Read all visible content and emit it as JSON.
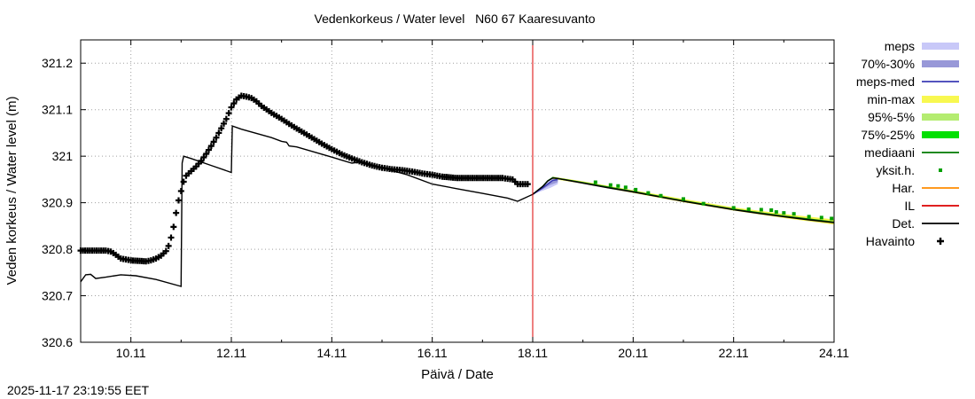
{
  "chart_data": {
    "type": "line",
    "title": "Vedenkorkeus / Water level   N60 67 Kaaresuvanto",
    "xlabel": "Päivä / Date",
    "ylabel": "Veden korkeus / Water level (m)",
    "timestamp": "2025-11-17 23:19:55 EET",
    "xlim": [
      9.0,
      24.0
    ],
    "ylim": [
      320.6,
      321.25
    ],
    "x_ticks": [
      {
        "value": 10,
        "label": "10.11"
      },
      {
        "value": 12,
        "label": "12.11"
      },
      {
        "value": 14,
        "label": "14.11"
      },
      {
        "value": 16,
        "label": "16.11"
      },
      {
        "value": 18,
        "label": "18.11"
      },
      {
        "value": 20,
        "label": "20.11"
      },
      {
        "value": 22,
        "label": "22.11"
      },
      {
        "value": 24,
        "label": "24.11"
      }
    ],
    "y_ticks": [
      {
        "value": 320.6,
        "label": "320.6"
      },
      {
        "value": 320.7,
        "label": "320.7"
      },
      {
        "value": 320.8,
        "label": "320.8"
      },
      {
        "value": 320.9,
        "label": "320.9"
      },
      {
        "value": 321.0,
        "label": "321"
      },
      {
        "value": 321.1,
        "label": "321.1"
      },
      {
        "value": 321.2,
        "label": "321.2"
      }
    ],
    "grid": true,
    "forecast_start": 18.0,
    "legend": [
      {
        "label": "meps",
        "type": "box",
        "color": "#c8c8f8"
      },
      {
        "label": "70%-30%",
        "type": "box",
        "color": "#9898d8"
      },
      {
        "label": "meps-med",
        "type": "line",
        "color": "#3c3cb4"
      },
      {
        "label": "min-max",
        "type": "box",
        "color": "#f8f850"
      },
      {
        "label": "95%-5%",
        "type": "box",
        "color": "#b4ec70"
      },
      {
        "label": "75%-25%",
        "type": "box",
        "color": "#00e000"
      },
      {
        "label": "mediaani",
        "type": "line",
        "color": "#007800"
      },
      {
        "label": "yksit.h.",
        "type": "dot",
        "color": "#00a000"
      },
      {
        "label": "Har.",
        "type": "line",
        "color": "#ff8c00"
      },
      {
        "label": "IL",
        "type": "line",
        "color": "#dc0000"
      },
      {
        "label": "Det.",
        "type": "line",
        "color": "#000000"
      },
      {
        "label": "Havainto",
        "type": "plus",
        "color": "#000000"
      }
    ],
    "series": [
      {
        "name": "Havainto",
        "style": "plus",
        "color": "#000000",
        "points": [
          [
            9.0,
            320.797
          ],
          [
            9.5,
            320.797
          ],
          [
            9.6,
            320.795
          ],
          [
            9.7,
            320.788
          ],
          [
            9.8,
            320.78
          ],
          [
            10.0,
            320.776
          ],
          [
            10.3,
            320.774
          ],
          [
            10.4,
            320.776
          ],
          [
            10.5,
            320.78
          ],
          [
            10.6,
            320.786
          ],
          [
            10.7,
            320.796
          ],
          [
            10.75,
            320.807
          ],
          [
            10.8,
            320.825
          ],
          [
            10.85,
            320.848
          ],
          [
            10.9,
            320.878
          ],
          [
            10.95,
            320.905
          ],
          [
            11.0,
            320.925
          ],
          [
            11.05,
            320.945
          ],
          [
            11.1,
            320.958
          ],
          [
            11.2,
            320.968
          ],
          [
            11.3,
            320.978
          ],
          [
            11.4,
            320.99
          ],
          [
            11.5,
            321.005
          ],
          [
            11.6,
            321.022
          ],
          [
            11.7,
            321.04
          ],
          [
            11.8,
            321.06
          ],
          [
            11.9,
            321.08
          ],
          [
            12.0,
            321.105
          ],
          [
            12.1,
            321.122
          ],
          [
            12.2,
            321.13
          ],
          [
            12.3,
            321.128
          ],
          [
            12.4,
            321.125
          ],
          [
            12.5,
            321.118
          ],
          [
            12.6,
            321.108
          ],
          [
            12.8,
            321.093
          ],
          [
            13.0,
            321.08
          ],
          [
            13.2,
            321.066
          ],
          [
            13.4,
            321.053
          ],
          [
            13.6,
            321.04
          ],
          [
            13.8,
            321.027
          ],
          [
            14.0,
            321.015
          ],
          [
            14.2,
            321.004
          ],
          [
            14.4,
            320.995
          ],
          [
            14.6,
            320.987
          ],
          [
            14.8,
            320.98
          ],
          [
            15.0,
            320.975
          ],
          [
            15.2,
            320.972
          ],
          [
            15.4,
            320.97
          ],
          [
            15.6,
            320.967
          ],
          [
            15.8,
            320.963
          ],
          [
            16.0,
            320.96
          ],
          [
            16.2,
            320.956
          ],
          [
            16.5,
            320.953
          ],
          [
            16.8,
            320.953
          ],
          [
            17.1,
            320.953
          ],
          [
            17.4,
            320.953
          ],
          [
            17.6,
            320.95
          ],
          [
            17.7,
            320.94
          ],
          [
            17.9,
            320.94
          ]
        ]
      },
      {
        "name": "Det.",
        "style": "line",
        "color": "#000000",
        "points": [
          [
            9.0,
            320.73
          ],
          [
            9.1,
            320.745
          ],
          [
            9.2,
            320.746
          ],
          [
            9.3,
            320.737
          ],
          [
            9.5,
            320.74
          ],
          [
            9.8,
            320.745
          ],
          [
            10.1,
            320.743
          ],
          [
            10.5,
            320.735
          ],
          [
            11.0,
            320.72
          ],
          [
            11.0,
            320.722
          ],
          [
            11.02,
            320.985
          ],
          [
            11.05,
            321.0
          ],
          [
            11.2,
            320.995
          ],
          [
            11.6,
            320.98
          ],
          [
            12.0,
            320.965
          ],
          [
            12.02,
            321.065
          ],
          [
            12.2,
            321.058
          ],
          [
            12.8,
            321.04
          ],
          [
            13.0,
            321.032
          ],
          [
            13.1,
            321.03
          ],
          [
            13.15,
            321.022
          ],
          [
            13.3,
            321.02
          ],
          [
            14.0,
            320.998
          ],
          [
            14.4,
            320.985
          ],
          [
            14.6,
            320.988
          ],
          [
            15.0,
            320.975
          ],
          [
            15.5,
            320.96
          ],
          [
            16.0,
            320.94
          ],
          [
            16.5,
            320.93
          ],
          [
            17.0,
            320.92
          ],
          [
            17.5,
            320.91
          ],
          [
            17.7,
            320.903
          ],
          [
            17.8,
            320.908
          ],
          [
            18.0,
            320.918
          ],
          [
            18.2,
            320.935
          ],
          [
            18.3,
            320.947
          ],
          [
            18.4,
            320.953
          ],
          [
            18.5,
            320.952
          ],
          [
            19.0,
            320.942
          ],
          [
            19.5,
            320.932
          ],
          [
            20.0,
            320.923
          ],
          [
            20.5,
            320.913
          ],
          [
            21.0,
            320.903
          ],
          [
            21.5,
            320.894
          ],
          [
            22.0,
            320.885
          ],
          [
            22.5,
            320.877
          ],
          [
            23.0,
            320.87
          ],
          [
            23.5,
            320.863
          ],
          [
            24.0,
            320.857
          ]
        ]
      },
      {
        "name": "mediaani",
        "style": "line",
        "color": "#007800",
        "points": [
          [
            18.0,
            320.918
          ],
          [
            18.2,
            320.935
          ],
          [
            18.3,
            320.947
          ],
          [
            18.4,
            320.954
          ],
          [
            19.0,
            320.943
          ],
          [
            20.0,
            320.924
          ],
          [
            21.0,
            320.904
          ],
          [
            22.0,
            320.886
          ],
          [
            23.0,
            320.871
          ],
          [
            24.0,
            320.858
          ]
        ]
      },
      {
        "name": "meps-med",
        "style": "line",
        "color": "#3c3cb4",
        "points": [
          [
            18.0,
            320.918
          ],
          [
            18.2,
            320.932
          ],
          [
            18.4,
            320.948
          ],
          [
            18.5,
            320.95
          ]
        ]
      },
      {
        "name": "yksit.h.",
        "style": "dots",
        "color": "#00a000",
        "points": [
          [
            19.25,
            320.944
          ],
          [
            19.55,
            320.938
          ],
          [
            19.7,
            320.936
          ],
          [
            19.85,
            320.933
          ],
          [
            20.05,
            320.928
          ],
          [
            20.3,
            320.921
          ],
          [
            20.55,
            320.915
          ],
          [
            21.0,
            320.908
          ],
          [
            21.4,
            320.898
          ],
          [
            22.0,
            320.889
          ],
          [
            22.3,
            320.886
          ],
          [
            22.55,
            320.885
          ],
          [
            22.75,
            320.884
          ],
          [
            22.85,
            320.88
          ],
          [
            23.0,
            320.878
          ],
          [
            23.2,
            320.876
          ],
          [
            23.5,
            320.87
          ],
          [
            23.75,
            320.868
          ],
          [
            23.95,
            320.866
          ]
        ]
      }
    ],
    "bands": [
      {
        "name": "meps",
        "color": "#c8c8f8",
        "upper": [
          [
            18.0,
            320.918
          ],
          [
            18.2,
            320.935
          ],
          [
            18.35,
            320.95
          ],
          [
            18.5,
            320.952
          ]
        ],
        "lower": [
          [
            18.0,
            320.918
          ],
          [
            18.2,
            320.926
          ],
          [
            18.35,
            320.932
          ],
          [
            18.5,
            320.94
          ]
        ]
      },
      {
        "name": "70%-30%",
        "color": "#9898d8",
        "upper": [
          [
            18.0,
            320.918
          ],
          [
            18.2,
            320.932
          ],
          [
            18.35,
            320.945
          ],
          [
            18.5,
            320.949
          ]
        ],
        "lower": [
          [
            18.0,
            320.918
          ],
          [
            18.2,
            320.929
          ],
          [
            18.35,
            320.938
          ],
          [
            18.5,
            320.944
          ]
        ]
      },
      {
        "name": "min-max",
        "color": "#f8f850",
        "upper": [
          [
            18.4,
            320.956
          ],
          [
            19.0,
            320.946
          ],
          [
            20.0,
            320.927
          ],
          [
            21.0,
            320.908
          ],
          [
            22.0,
            320.89
          ],
          [
            23.0,
            320.876
          ],
          [
            24.0,
            320.864
          ]
        ],
        "lower": [
          [
            18.4,
            320.951
          ],
          [
            19.0,
            320.941
          ],
          [
            20.0,
            320.921
          ],
          [
            21.0,
            320.901
          ],
          [
            22.0,
            320.883
          ],
          [
            23.0,
            320.867
          ],
          [
            24.0,
            320.853
          ]
        ]
      }
    ]
  }
}
